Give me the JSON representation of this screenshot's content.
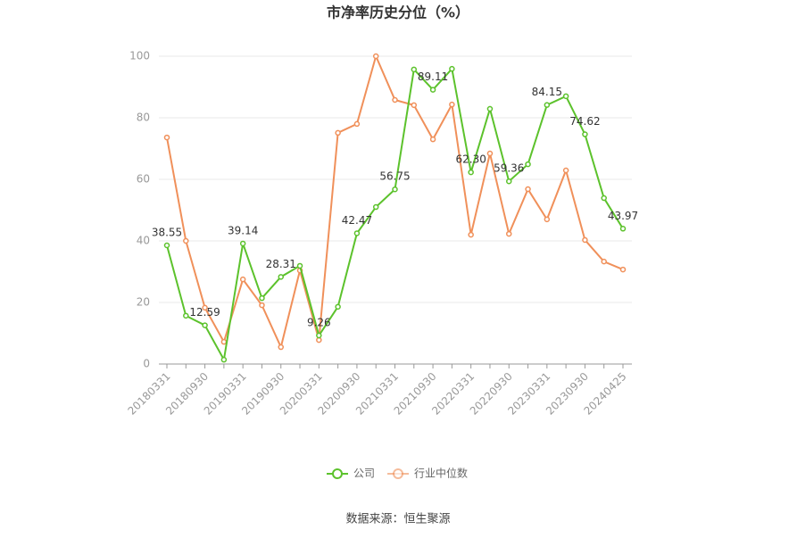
{
  "chart_data": {
    "type": "line",
    "title": "市净率历史分位（%）",
    "categories": [
      "20180331",
      null,
      "20180930",
      null,
      "20190331",
      null,
      "20190930",
      null,
      "20200331",
      null,
      "20200930",
      null,
      "20210331",
      null,
      "20210930",
      null,
      "20220331",
      null,
      "20220930",
      null,
      "20230331",
      null,
      "20230930",
      null,
      "20240425"
    ],
    "series": [
      {
        "name": "公司",
        "color": "#5cc22c",
        "values": [
          38.55,
          15.7,
          12.59,
          1.4,
          39.14,
          21.4,
          28.31,
          31.9,
          9.26,
          18.6,
          42.47,
          51.0,
          56.75,
          95.7,
          89.11,
          95.9,
          62.3,
          82.9,
          59.36,
          64.9,
          84.15,
          87.0,
          74.62,
          53.9,
          43.97
        ],
        "value_labels": [
          "38.55",
          null,
          "12.59",
          null,
          "39.14",
          null,
          "28.31",
          null,
          "9.26",
          null,
          "42.47",
          null,
          "56.75",
          null,
          "89.11",
          null,
          "62.30",
          null,
          "59.36",
          null,
          "84.15",
          null,
          "74.62",
          null,
          "43.97"
        ]
      },
      {
        "name": "行业中位数",
        "color": "#f0905a",
        "values": [
          73.6,
          40.0,
          18.3,
          7.2,
          27.5,
          19.1,
          5.5,
          30.4,
          7.8,
          75.1,
          78.0,
          100,
          85.8,
          84.1,
          73.0,
          84.3,
          42.0,
          68.4,
          42.3,
          56.8,
          47.0,
          62.9,
          40.3,
          33.3,
          30.7
        ]
      }
    ],
    "ylim": [
      0,
      100
    ],
    "yticks": [
      0,
      20,
      40,
      60,
      80,
      100
    ],
    "grid": true,
    "legend": "bottom",
    "source": "数据来源：恒生聚源"
  }
}
